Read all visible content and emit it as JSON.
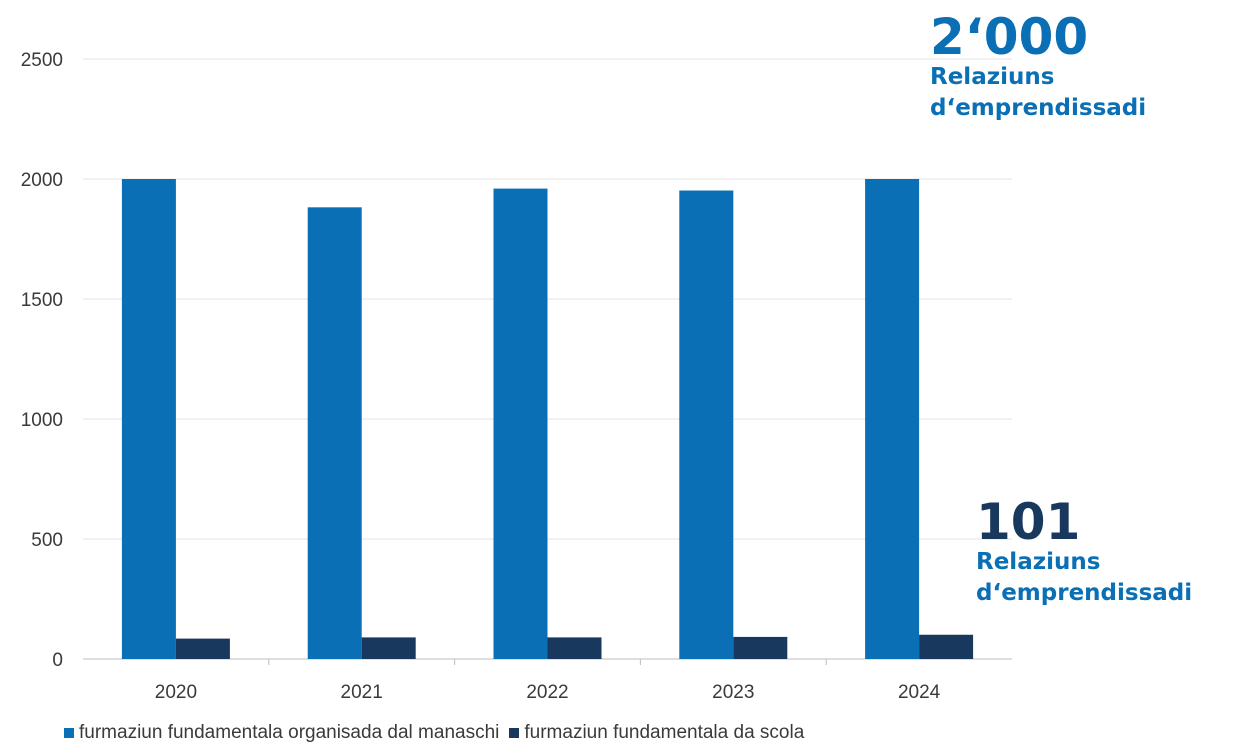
{
  "chart_data": {
    "type": "bar",
    "categories": [
      "2020",
      "2021",
      "2022",
      "2023",
      "2024"
    ],
    "series": [
      {
        "name": "furmaziun fundamentala organisada dal manaschi",
        "values": [
          2000,
          1882,
          1960,
          1952,
          2000
        ],
        "color": "#0a6fb5"
      },
      {
        "name": "furmaziun fundamentala da scola",
        "values": [
          85,
          90,
          90,
          92,
          101
        ],
        "color": "#18385e"
      }
    ],
    "yticks": [
      "0",
      "500",
      "1000",
      "1500",
      "2000",
      "2500"
    ],
    "ylim": [
      0,
      2500
    ],
    "grid": true,
    "legend_position": "bottom-left"
  },
  "callouts": {
    "top": {
      "number": "2‘000",
      "label_line1": "Relaziuns",
      "label_line2": "d‘emprendissadi"
    },
    "bottom": {
      "number": "101",
      "label_line1": "Relaziuns",
      "label_line2": "d‘emprendissadi"
    }
  }
}
